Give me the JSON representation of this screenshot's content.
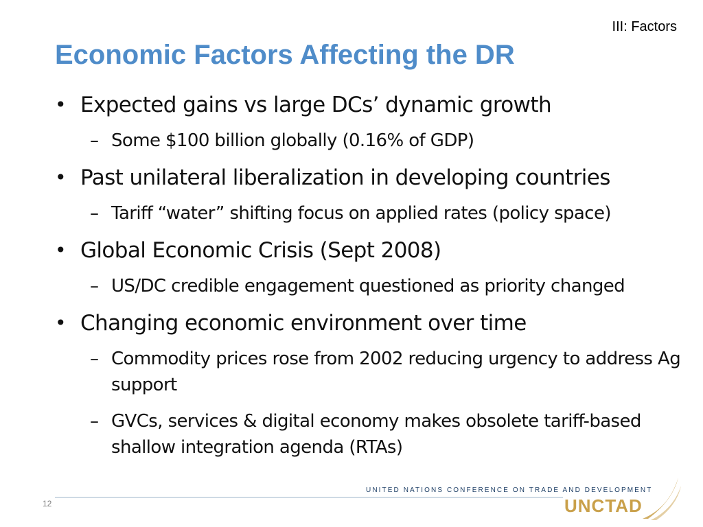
{
  "section_tag": "III: Factors",
  "title": "Economic Factors Affecting the DR",
  "bullets": [
    {
      "text": "Expected gains vs large DCs’ dynamic growth",
      "subs": [
        "Some $100 billion globally (0.16% of GDP)"
      ]
    },
    {
      "text": "Past unilateral liberalization in developing countries",
      "subs": [
        "Tariff “water” shifting focus on applied rates (policy space)"
      ]
    },
    {
      "text": "Global Economic Crisis (Sept 2008)",
      "subs": [
        "US/DC credible engagement questioned as priority changed"
      ]
    },
    {
      "text": "Changing economic environment over time",
      "subs": [
        "Commodity prices rose from 2002 reducing urgency to address Ag support",
        "GVCs, services & digital economy makes obsolete tariff-based shallow integration agenda (RTAs)"
      ]
    }
  ],
  "bullet_glyph": "•",
  "dash_glyph": "–",
  "footer": {
    "page_number": "12",
    "org_full_name": "UNITED NATIONS CONFERENCE ON TRADE AND DEVELOPMENT",
    "org_logo_text": "UNCTAD"
  },
  "colors": {
    "title": "#4f8cc9",
    "text": "#111111",
    "logo_gold": "#c9a04a",
    "logo_navy": "#1e3f66"
  },
  "icons": {
    "logo_mark": "unctad-swoosh-icon"
  }
}
